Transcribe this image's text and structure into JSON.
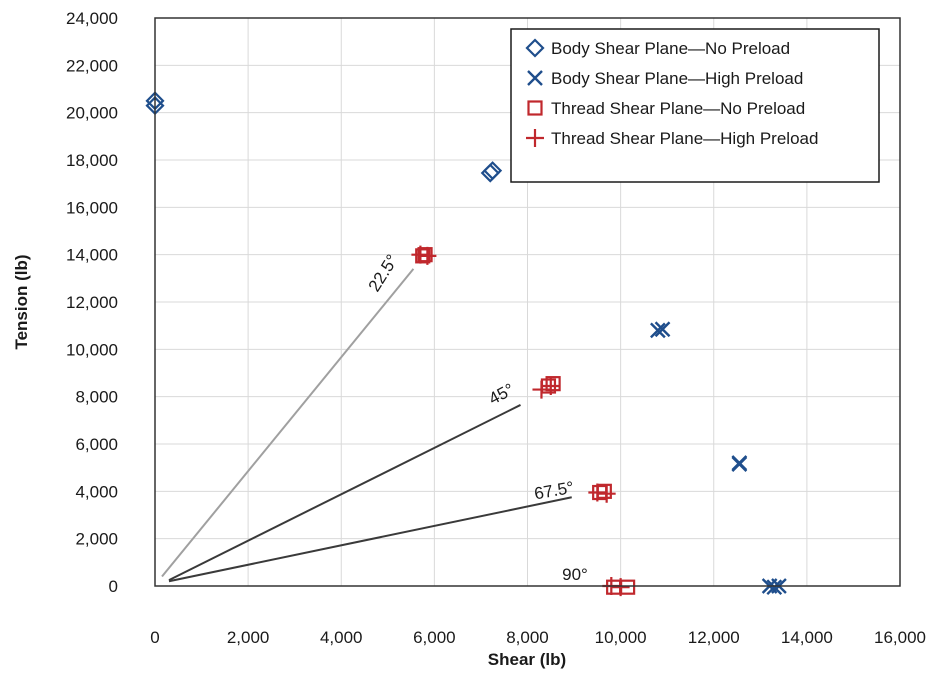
{
  "chart_data": {
    "type": "scatter",
    "xlabel": "Shear (lb)",
    "ylabel": "Tension (lb)",
    "xlim": [
      0,
      16000
    ],
    "ylim": [
      0,
      24000
    ],
    "x_ticks": [
      "0",
      "2,000",
      "4,000",
      "6,000",
      "8,000",
      "10,000",
      "12,000",
      "14,000",
      "16,000"
    ],
    "y_ticks": [
      "0",
      "2,000",
      "4,000",
      "6,000",
      "8,000",
      "10,000",
      "12,000",
      "14,000",
      "16,000",
      "18,000",
      "20,000",
      "22,000",
      "24,000"
    ],
    "grid": true,
    "legend_position": "top-right",
    "series": [
      {
        "name": "Body Shear Plane—No Preload",
        "marker": "diamond",
        "color": "#1f4e8c",
        "points": [
          [
            0,
            20300
          ],
          [
            0,
            20500
          ],
          [
            7200,
            17450
          ],
          [
            7250,
            17550
          ]
        ]
      },
      {
        "name": "Body Shear Plane—High Preload",
        "marker": "x",
        "color": "#1f4e8c",
        "points": [
          [
            10800,
            10800
          ],
          [
            10900,
            10850
          ],
          [
            12550,
            5200
          ],
          [
            12550,
            5150
          ],
          [
            13200,
            0
          ],
          [
            13300,
            -50
          ],
          [
            13400,
            0
          ]
        ]
      },
      {
        "name": "Thread Shear Plane—No Preload",
        "marker": "square",
        "color": "#c0282d",
        "points": [
          [
            5750,
            13950
          ],
          [
            5800,
            14000
          ],
          [
            8450,
            8450
          ],
          [
            8550,
            8550
          ],
          [
            9550,
            3950
          ],
          [
            9650,
            4000
          ],
          [
            9850,
            -50
          ],
          [
            10150,
            -50
          ]
        ]
      },
      {
        "name": "Thread Shear Plane—High Preload",
        "marker": "plus",
        "color": "#c0282d",
        "points": [
          [
            5700,
            14000
          ],
          [
            5850,
            13950
          ],
          [
            8300,
            8300
          ],
          [
            8500,
            8450
          ],
          [
            9500,
            3950
          ],
          [
            9700,
            3900
          ],
          [
            9800,
            0
          ],
          [
            10000,
            -50
          ]
        ]
      }
    ],
    "reference_lines": [
      {
        "label": "22.5°",
        "from": [
          150,
          400
        ],
        "to": [
          5550,
          13400
        ],
        "color": "#a0a0a0"
      },
      {
        "label": "45°",
        "from": [
          300,
          250
        ],
        "to": [
          7850,
          7650
        ],
        "color": "#3a3a3a"
      },
      {
        "label": "67.5°",
        "from": [
          300,
          200
        ],
        "to": [
          8950,
          3750
        ],
        "color": "#3a3a3a"
      },
      {
        "label": "90°",
        "from": null,
        "to": null,
        "color": null
      }
    ]
  }
}
